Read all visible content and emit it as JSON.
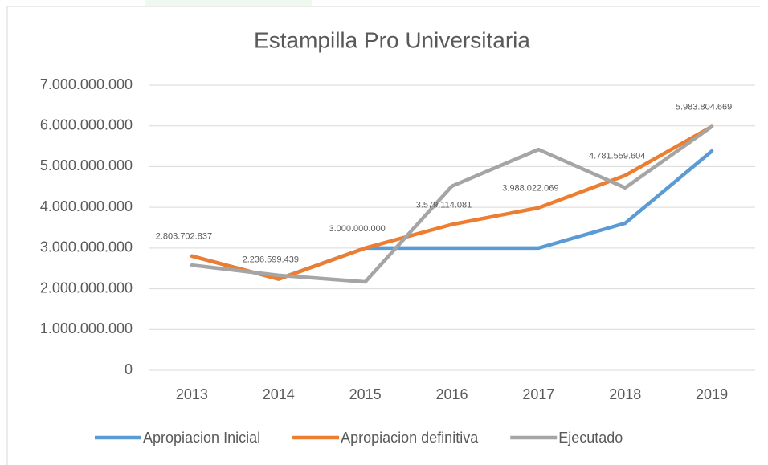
{
  "chart_data": {
    "type": "line",
    "title": "Estampilla Pro Universitaria",
    "categories": [
      "2013",
      "2014",
      "2015",
      "2016",
      "2017",
      "2018",
      "2019"
    ],
    "series": [
      {
        "name": "Apropiacion Inicial",
        "color": "#5b9bd5",
        "values": [
          2800000000,
          2240000000,
          3000000000,
          3000000000,
          3000000000,
          3610000000,
          5380000000
        ]
      },
      {
        "name": "Apropiacion definitiva",
        "color": "#ed7d31",
        "values": [
          2803702837,
          2236599439,
          3000000000,
          3579114081,
          3988022069,
          4781559604,
          5983804669
        ],
        "value_labels": [
          "2.803.702.837",
          "2.236.599.439",
          "3.000.000.000",
          "3.579.114.081",
          "3.988.022.069",
          "4.781.559.604",
          "5.983.804.669"
        ]
      },
      {
        "name": "Ejecutado",
        "color": "#a5a5a5",
        "values": [
          2580000000,
          2330000000,
          2170000000,
          4520000000,
          5420000000,
          4480000000,
          5983804669
        ]
      }
    ],
    "ylim": [
      0,
      7000000000
    ],
    "yticks": [
      0,
      {
        "value": 1000000000,
        "label": "1.000.000.000"
      },
      {
        "value": 2000000000,
        "label": "2.000.000.000"
      },
      {
        "value": 3000000000,
        "label": "3.000.000.000"
      },
      {
        "value": 4000000000,
        "label": "4.000.000.000"
      },
      {
        "value": 5000000000,
        "label": "5.000.000.000"
      },
      {
        "value": 6000000000,
        "label": "6.000.000.000"
      },
      {
        "value": 7000000000,
        "label": "7.000.000.000"
      }
    ],
    "grid": true,
    "legend": "bottom"
  }
}
